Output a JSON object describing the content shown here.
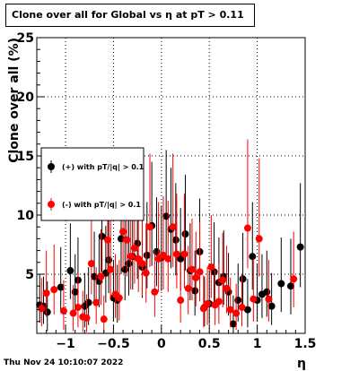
{
  "header": {
    "title": "Clone  over all for Global vs   η at pT > 0.11"
  },
  "footer": {
    "timestamp": "Thu Nov 24 10:10:07 2022"
  },
  "colors": {
    "positive": "#000000",
    "negative": "#ff0000",
    "grid": "#000000"
  },
  "chart_data": {
    "type": "scatter",
    "title": "Clone  over all for Global vs   η at pT > 0.11",
    "xlabel": "η",
    "ylabel": "Clone  over all (%)",
    "xlim": [
      -1.3,
      1.5
    ],
    "ylim": [
      0,
      25
    ],
    "x_ticks": [
      -1,
      -0.5,
      0,
      0.5,
      1,
      1.5
    ],
    "x_tick_labels": [
      "−1",
      "−0.5",
      "0",
      "0.5",
      "1",
      "1.5"
    ],
    "y_ticks": [
      5,
      10,
      15,
      20,
      25
    ],
    "y_tick_labels": [
      "5",
      "10",
      "15",
      "20",
      "25"
    ],
    "grid": true,
    "legend_position": "left",
    "legend": [
      {
        "label": "(+) with pT/|q| > 0.1"
      },
      {
        "label": "(-) with pT/|q| > 0.1"
      }
    ],
    "series": [
      {
        "name": "(+) with pT/|q| > 0.1",
        "x": [
          -1.27,
          -1.23,
          -1.19,
          -1.05,
          -0.95,
          -0.9,
          -0.87,
          -0.8,
          -0.76,
          -0.7,
          -0.65,
          -0.62,
          -0.58,
          -0.55,
          -0.5,
          -0.46,
          -0.42,
          -0.38,
          -0.34,
          -0.3,
          -0.25,
          -0.2,
          -0.15,
          -0.1,
          -0.05,
          0.0,
          0.05,
          0.1,
          0.15,
          0.2,
          0.25,
          0.3,
          0.35,
          0.4,
          0.45,
          0.5,
          0.55,
          0.6,
          0.65,
          0.7,
          0.75,
          0.8,
          0.85,
          0.9,
          0.95,
          1.0,
          1.05,
          1.1,
          1.15,
          1.25,
          1.35,
          1.45
        ],
        "y": [
          2.4,
          2.3,
          1.8,
          3.9,
          5.3,
          3.5,
          4.5,
          2.3,
          2.6,
          4.8,
          4.4,
          8.2,
          5.1,
          6.2,
          3.0,
          2.8,
          8.0,
          5.4,
          5.9,
          6.5,
          7.6,
          5.6,
          6.6,
          9.1,
          6.9,
          6.4,
          9.9,
          8.8,
          7.9,
          6.3,
          8.4,
          5.3,
          3.6,
          6.9,
          2.2,
          2.5,
          5.2,
          4.3,
          4.8,
          3.5,
          0.8,
          2.8,
          4.6,
          2.0,
          6.5,
          2.8,
          3.3,
          3.5,
          2.3,
          4.2,
          4.0,
          7.3
        ],
        "err_lo": [
          1.5,
          1.5,
          1.6,
          2.0,
          2.4,
          2.0,
          2.2,
          1.8,
          1.9,
          2.4,
          2.2,
          3.0,
          2.5,
          2.8,
          2.0,
          1.9,
          3.0,
          2.6,
          2.7,
          2.8,
          3.0,
          2.6,
          2.8,
          3.4,
          2.9,
          2.8,
          3.6,
          3.3,
          3.0,
          2.7,
          3.1,
          2.5,
          2.1,
          2.8,
          1.6,
          1.7,
          2.6,
          2.3,
          2.4,
          2.0,
          0.8,
          1.8,
          2.4,
          1.5,
          2.8,
          1.8,
          2.0,
          2.1,
          1.6,
          2.4,
          2.4,
          3.4
        ],
        "err_hi": [
          2.6,
          2.5,
          2.6,
          3.4,
          4.0,
          3.2,
          3.6,
          2.8,
          3.0,
          3.8,
          3.6,
          4.8,
          4.0,
          4.4,
          3.2,
          3.0,
          4.8,
          4.2,
          4.3,
          4.6,
          4.8,
          4.2,
          4.5,
          5.4,
          4.6,
          4.4,
          5.6,
          5.2,
          4.8,
          4.3,
          5.0,
          4.0,
          3.4,
          4.5,
          2.6,
          2.8,
          4.2,
          3.8,
          3.9,
          3.3,
          2.4,
          3.1,
          3.9,
          2.6,
          4.6,
          3.1,
          3.4,
          3.5,
          2.8,
          3.9,
          4.0,
          5.4
        ]
      },
      {
        "name": "(-) with pT/|q| > 0.1",
        "x": [
          -1.25,
          -1.2,
          -1.12,
          -1.02,
          -0.92,
          -0.87,
          -0.82,
          -0.78,
          -0.73,
          -0.68,
          -0.63,
          -0.6,
          -0.56,
          -0.53,
          -0.48,
          -0.44,
          -0.4,
          -0.36,
          -0.32,
          -0.28,
          -0.24,
          -0.2,
          -0.16,
          -0.12,
          -0.07,
          -0.03,
          0.02,
          0.07,
          0.12,
          0.16,
          0.2,
          0.24,
          0.28,
          0.32,
          0.36,
          0.4,
          0.44,
          0.48,
          0.52,
          0.56,
          0.6,
          0.64,
          0.68,
          0.72,
          0.78,
          0.84,
          0.9,
          0.96,
          1.02,
          1.12,
          1.38
        ],
        "y": [
          2.1,
          3.4,
          3.7,
          1.9,
          1.7,
          2.2,
          1.4,
          1.3,
          5.9,
          2.6,
          4.8,
          1.2,
          7.9,
          5.4,
          3.3,
          3.0,
          8.6,
          7.9,
          6.5,
          7.2,
          6.3,
          5.9,
          5.1,
          9.0,
          3.5,
          6.3,
          6.6,
          6.3,
          9.0,
          6.7,
          2.8,
          6.7,
          3.8,
          5.4,
          4.7,
          5.2,
          2.1,
          2.5,
          5.6,
          2.4,
          2.7,
          4.5,
          3.8,
          2.0,
          1.7,
          2.2,
          8.9,
          2.9,
          8.0,
          2.9,
          4.6
        ],
        "err_lo": [
          1.5,
          2.0,
          2.1,
          1.6,
          1.5,
          1.7,
          1.3,
          1.2,
          2.6,
          1.8,
          2.4,
          1.1,
          3.1,
          2.6,
          2.0,
          1.9,
          3.2,
          3.1,
          2.8,
          3.0,
          2.8,
          2.7,
          2.5,
          3.4,
          2.1,
          2.8,
          2.9,
          2.8,
          3.4,
          2.9,
          1.9,
          2.9,
          2.2,
          2.6,
          2.4,
          2.5,
          1.6,
          1.8,
          2.6,
          1.7,
          1.9,
          2.3,
          2.1,
          1.5,
          1.4,
          1.6,
          3.4,
          1.9,
          3.2,
          1.9,
          2.4
        ],
        "err_hi": [
          2.6,
          3.6,
          3.8,
          2.6,
          2.4,
          2.8,
          2.2,
          2.0,
          4.4,
          3.0,
          4.0,
          2.0,
          5.4,
          4.3,
          3.4,
          3.2,
          5.6,
          5.4,
          5.0,
          5.2,
          4.8,
          4.6,
          4.2,
          6.2,
          3.6,
          4.8,
          5.0,
          4.9,
          6.2,
          5.1,
          3.2,
          5.1,
          3.6,
          4.3,
          3.9,
          4.2,
          2.8,
          3.1,
          4.4,
          3.0,
          3.2,
          4.0,
          3.6,
          2.7,
          2.5,
          2.8,
          7.5,
          3.4,
          6.8,
          3.3,
          4.0
        ]
      }
    ]
  }
}
